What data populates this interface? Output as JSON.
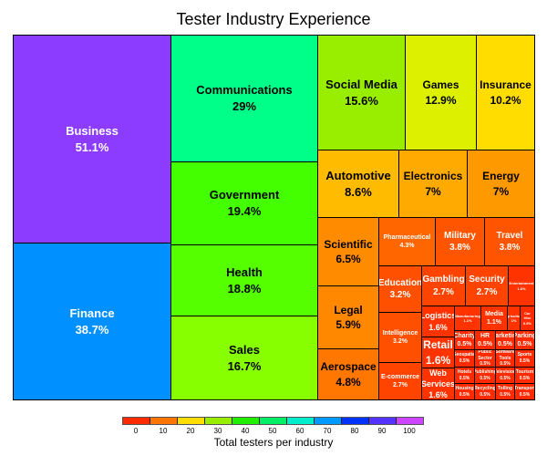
{
  "chart_data": {
    "type": "treemap",
    "title": "Tester Industry Experience",
    "colorbar": {
      "label": "Total testers per industry",
      "ticks": [
        "0",
        "10",
        "20",
        "30",
        "40",
        "50",
        "60",
        "70",
        "80",
        "90",
        "100"
      ],
      "colors": [
        "#ff2a00",
        "#ff7700",
        "#ffdd00",
        "#99ee00",
        "#22ee00",
        "#00ee66",
        "#00eecc",
        "#0099ff",
        "#0033ff",
        "#5533ff",
        "#cc44ff"
      ]
    },
    "items": [
      {
        "name": "Business",
        "value": "51.1%",
        "color": "#8c3cff",
        "text": "#ffffff"
      },
      {
        "name": "Finance",
        "value": "38.7%",
        "color": "#0090ff",
        "text": "#ffffff"
      },
      {
        "name": "Communications",
        "value": "29%",
        "color": "#00ff88",
        "text": "#000000"
      },
      {
        "name": "Government",
        "value": "19.4%",
        "color": "#44ff00",
        "text": "#000000"
      },
      {
        "name": "Health",
        "value": "18.8%",
        "color": "#55ff00",
        "text": "#000000"
      },
      {
        "name": "Sales",
        "value": "16.7%",
        "color": "#88ff00",
        "text": "#000000"
      },
      {
        "name": "Social Media",
        "value": "15.6%",
        "color": "#99ee00",
        "text": "#000000"
      },
      {
        "name": "Games",
        "value": "12.9%",
        "color": "#ddf000",
        "text": "#000000"
      },
      {
        "name": "Insurance",
        "value": "10.2%",
        "color": "#ffdd00",
        "text": "#000000"
      },
      {
        "name": "Automotive",
        "value": "8.6%",
        "color": "#ffbb00",
        "text": "#000000"
      },
      {
        "name": "Electronics",
        "value": "7%",
        "color": "#ffaa00",
        "text": "#000000"
      },
      {
        "name": "Energy",
        "value": "7%",
        "color": "#ff9900",
        "text": "#000000"
      },
      {
        "name": "Scientific",
        "value": "6.5%",
        "color": "#ff8c00",
        "text": "#000000"
      },
      {
        "name": "Legal",
        "value": "5.9%",
        "color": "#ff8800",
        "text": "#000000"
      },
      {
        "name": "Aerospace",
        "value": "4.8%",
        "color": "#ff7700",
        "text": "#000000"
      },
      {
        "name": "Pharmaceutical",
        "value": "4.3%",
        "color": "#ff6600",
        "text": "#ffffff"
      },
      {
        "name": "Military",
        "value": "3.8%",
        "color": "#ff5500",
        "text": "#ffffff"
      },
      {
        "name": "Travel",
        "value": "3.8%",
        "color": "#ff5500",
        "text": "#ffffff"
      },
      {
        "name": "Education",
        "value": "3.2%",
        "color": "#ff5000",
        "text": "#ffffff"
      },
      {
        "name": "Intelligence",
        "value": "3.2%",
        "color": "#ff5000",
        "text": "#ffffff"
      },
      {
        "name": "E-commerce",
        "value": "2.7%",
        "color": "#ff4400",
        "text": "#ffffff"
      },
      {
        "name": "Gambling",
        "value": "2.7%",
        "color": "#ff4400",
        "text": "#ffffff"
      },
      {
        "name": "Security",
        "value": "2.7%",
        "color": "#ff4400",
        "text": "#ffffff"
      },
      {
        "name": "Entertainment",
        "value": "1.6%",
        "color": "#ff3300",
        "text": "#ffffff"
      },
      {
        "name": "Logistics",
        "value": "1.6%",
        "color": "#ff3300",
        "text": "#ffffff"
      },
      {
        "name": "Retail",
        "value": "1.6%",
        "color": "#ff3300",
        "text": "#ffffff"
      },
      {
        "name": "Web Services",
        "value": "1.6%",
        "color": "#ff3300",
        "text": "#ffffff"
      },
      {
        "name": "Manufacturing",
        "value": "1.1%",
        "color": "#ff3300",
        "text": "#ffffff"
      },
      {
        "name": "Media",
        "value": "1.1%",
        "color": "#ff3300",
        "text": "#ffffff"
      },
      {
        "name": "Agriculture",
        "value": "1%",
        "color": "#ff3300",
        "text": "#ffffff"
      },
      {
        "name": "Car Hire",
        "value": "0.5%",
        "color": "#ff2a00",
        "text": "#ffffff"
      },
      {
        "name": "Charity",
        "value": "0.5%",
        "color": "#ff2a00",
        "text": "#ffffff"
      },
      {
        "name": "HR",
        "value": "0.5%",
        "color": "#ff2a00",
        "text": "#ffffff"
      },
      {
        "name": "Marketing",
        "value": "0.5%",
        "color": "#ff2a00",
        "text": "#ffffff"
      },
      {
        "name": "Parking",
        "value": "0.5%",
        "color": "#ff2a00",
        "text": "#ffffff"
      },
      {
        "name": "Geospatial",
        "value": "0.5%",
        "color": "#ff2a00",
        "text": "#ffffff"
      },
      {
        "name": "Public Sector",
        "value": "0.5%",
        "color": "#ff2a00",
        "text": "#ffffff"
      },
      {
        "name": "Software Tools",
        "value": "0.5%",
        "color": "#ff2a00",
        "text": "#ffffff"
      },
      {
        "name": "Sports",
        "value": "0.5%",
        "color": "#ff2a00",
        "text": "#ffffff"
      },
      {
        "name": "Hotels",
        "value": "0.5%",
        "color": "#ff2a00",
        "text": "#ffffff"
      },
      {
        "name": "Publishing",
        "value": "0.5%",
        "color": "#ff2a00",
        "text": "#ffffff"
      },
      {
        "name": "Television",
        "value": "0.5%",
        "color": "#ff2a00",
        "text": "#ffffff"
      },
      {
        "name": "Tourism",
        "value": "0.5%",
        "color": "#ff2a00",
        "text": "#ffffff"
      },
      {
        "name": "Housing",
        "value": "0.5%",
        "color": "#ff2a00",
        "text": "#ffffff"
      },
      {
        "name": "Recycling",
        "value": "0.5%",
        "color": "#ff2a00",
        "text": "#ffffff"
      },
      {
        "name": "Tolling",
        "value": "0.5%",
        "color": "#ff2a00",
        "text": "#ffffff"
      },
      {
        "name": "Transport",
        "value": "0.5%",
        "color": "#ff2a00",
        "text": "#ffffff"
      }
    ]
  }
}
